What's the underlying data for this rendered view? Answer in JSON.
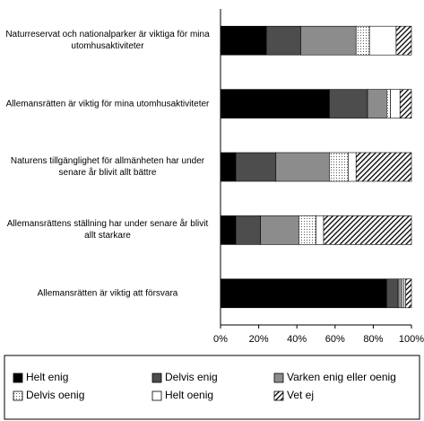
{
  "chart_data": {
    "type": "stacked-barh",
    "categories": [
      "Naturreservat och nationalparker är viktiga för mina utomhusaktiviteter",
      "Allemansrätten är viktig för mina utomhusaktiviteter",
      "Naturens tillgänglighet för allmänheten har under senare år blivit allt bättre",
      "Allemansrättens ställning har under senare år blivit allt starkare",
      "Allemansrätten är viktig att försvara"
    ],
    "series": [
      {
        "name": "Helt enig",
        "color": "#000000",
        "values": [
          24,
          57,
          8,
          8,
          87
        ]
      },
      {
        "name": "Delvis enig",
        "color": "#4d4d4d",
        "values": [
          18,
          20,
          21,
          13,
          6
        ]
      },
      {
        "name": "Varken enig eller oenig",
        "color": "#8c8c8c",
        "values": [
          29,
          10,
          28,
          20,
          2
        ]
      },
      {
        "name": "Delvis oenig",
        "color": "#ffffff",
        "pattern": "dots",
        "values": [
          7,
          2,
          10,
          9,
          1
        ]
      },
      {
        "name": "Helt oenig",
        "color": "#ffffff",
        "values": [
          14,
          5,
          4,
          4,
          1
        ]
      },
      {
        "name": "Vet ej",
        "color": "#ffffff",
        "pattern": "hatch",
        "values": [
          8,
          6,
          29,
          46,
          3
        ]
      }
    ],
    "xlim": [
      0,
      100
    ],
    "xticks": [
      {
        "value": 0,
        "label": "0%"
      },
      {
        "value": 20,
        "label": "20%"
      },
      {
        "value": 40,
        "label": "40%"
      },
      {
        "value": 60,
        "label": "60%"
      },
      {
        "value": 80,
        "label": "80%"
      },
      {
        "value": 100,
        "label": "100%"
      }
    ]
  }
}
